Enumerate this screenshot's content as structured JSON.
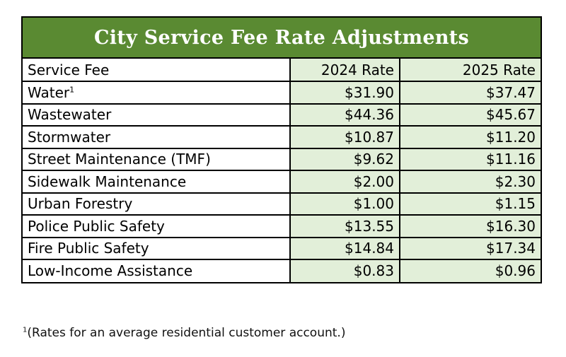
{
  "title": "City Service Fee Rate Adjustments",
  "headers": [
    "Service Fee",
    "2024 Rate",
    "2025 Rate"
  ],
  "rows": [
    {
      "service": "Water",
      "sup": "1",
      "rate_2024": "$31.90",
      "rate_2025": "$37.47"
    },
    {
      "service": "Wastewater",
      "sup": "",
      "rate_2024": "$44.36",
      "rate_2025": "$45.67"
    },
    {
      "service": "Stormwater",
      "sup": "",
      "rate_2024": "$10.87",
      "rate_2025": "$11.20"
    },
    {
      "service": "Street Maintenance (TMF)",
      "sup": "",
      "rate_2024": "$9.62",
      "rate_2025": "$11.16"
    },
    {
      "service": "Sidewalk Maintenance",
      "sup": "",
      "rate_2024": "$2.00",
      "rate_2025": "$2.30"
    },
    {
      "service": "Urban Forestry",
      "sup": "",
      "rate_2024": "$1.00",
      "rate_2025": "$1.15"
    },
    {
      "service": "Police Public Safety",
      "sup": "",
      "rate_2024": "$13.55",
      "rate_2025": "$16.30"
    },
    {
      "service": "Fire Public Safety",
      "sup": "",
      "rate_2024": "$14.84",
      "rate_2025": "$17.34"
    },
    {
      "service": "Low-Income Assistance",
      "sup": "",
      "rate_2024": "$0.83",
      "rate_2025": "$0.96"
    }
  ],
  "footnote": {
    "marker": "1",
    "text": "(Rates for an average residential customer account.)"
  },
  "colors": {
    "title_bg": "#5a8a32",
    "title_text": "#ffffff",
    "shaded_cell": "#e2efd9"
  }
}
